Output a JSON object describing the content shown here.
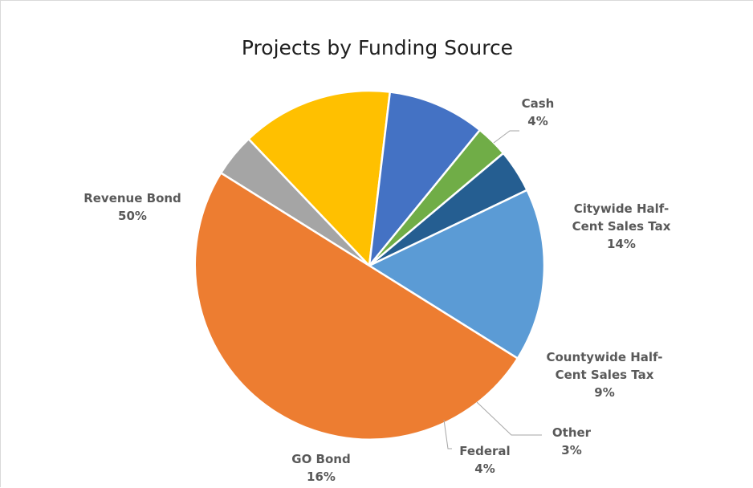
{
  "chart_data": {
    "type": "pie",
    "title": "Projects by Funding Source",
    "slices": [
      {
        "name": "Cash",
        "value": 4,
        "label_lines": [
          "Cash"
        ],
        "pct_label": "4%",
        "color": "#A5A5A5"
      },
      {
        "name": "Citywide Half-Cent Sales Tax",
        "value": 14,
        "label_lines": [
          "Citywide Half-",
          "Cent Sales Tax"
        ],
        "pct_label": "14%",
        "color": "#FFC000"
      },
      {
        "name": "Countywide Half-Cent Sales Tax",
        "value": 9,
        "label_lines": [
          "Countywide Half-",
          "Cent Sales Tax"
        ],
        "pct_label": "9%",
        "color": "#4472C4"
      },
      {
        "name": "Other",
        "value": 3,
        "label_lines": [
          "Other"
        ],
        "pct_label": "3%",
        "color": "#70AD47"
      },
      {
        "name": "Federal",
        "value": 4,
        "label_lines": [
          "Federal"
        ],
        "pct_label": "4%",
        "color": "#255E91"
      },
      {
        "name": "GO Bond",
        "value": 16,
        "label_lines": [
          "GO Bond"
        ],
        "pct_label": "16%",
        "color": "#5B9BD5"
      },
      {
        "name": "Revenue Bond",
        "value": 50,
        "label_lines": [
          "Revenue Bond"
        ],
        "pct_label": "50%",
        "color": "#ED7D31"
      }
    ]
  }
}
